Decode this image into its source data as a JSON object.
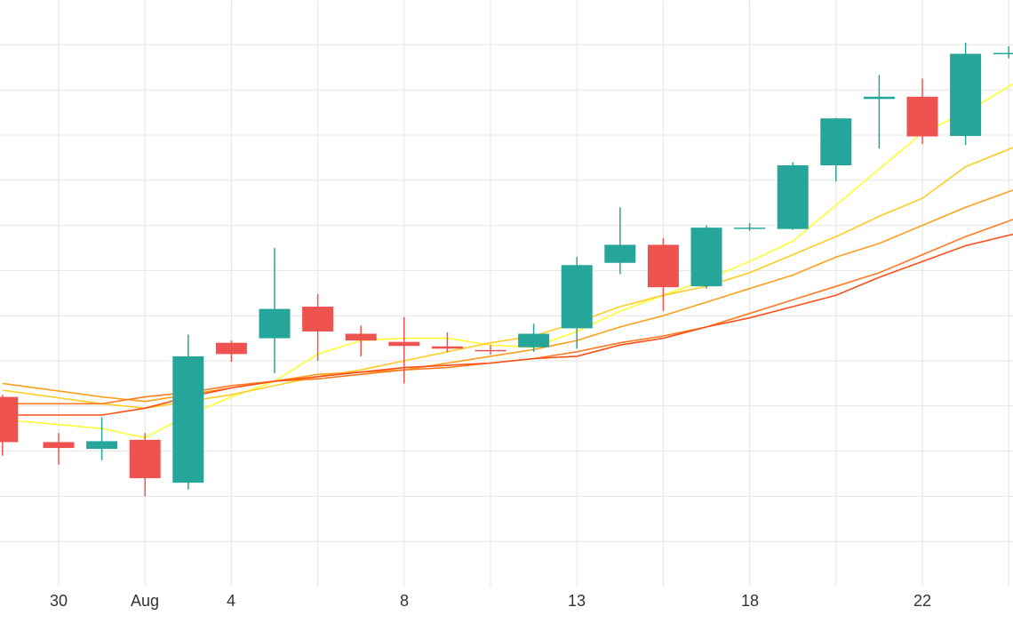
{
  "chart_data": {
    "type": "candlestick",
    "x_tick_labels": [
      "30",
      "Aug",
      "4",
      "8",
      "13",
      "18",
      "22"
    ],
    "grid": true,
    "ylim": [
      0,
      13.2
    ],
    "colors": {
      "up": "#26a69a",
      "down": "#ef5350",
      "ma": [
        "#ffff33",
        "#ffcc22",
        "#ff9f1e",
        "#ff7b22",
        "#ff4f18"
      ]
    },
    "candles": [
      {
        "t": -1.3,
        "open": 4.2,
        "high": 4.25,
        "low": 2.9,
        "close": 3.2
      },
      {
        "t": 0,
        "open": 3.2,
        "high": 3.4,
        "low": 2.7,
        "close": 3.07
      },
      {
        "t": 1,
        "open": 3.05,
        "high": 3.75,
        "low": 2.8,
        "close": 3.22
      },
      {
        "t": 2,
        "open": 3.25,
        "high": 3.4,
        "low": 2.0,
        "close": 2.4
      },
      {
        "t": 3,
        "open": 2.3,
        "high": 5.58,
        "low": 2.15,
        "close": 5.1
      },
      {
        "t": 4,
        "open": 5.4,
        "high": 5.45,
        "low": 4.98,
        "close": 5.15
      },
      {
        "t": 5,
        "open": 5.5,
        "high": 7.5,
        "low": 4.73,
        "close": 6.15
      },
      {
        "t": 6,
        "open": 6.2,
        "high": 6.48,
        "low": 5.0,
        "close": 5.65
      },
      {
        "t": 7,
        "open": 5.6,
        "high": 5.78,
        "low": 5.1,
        "close": 5.45
      },
      {
        "t": 8,
        "open": 5.42,
        "high": 5.97,
        "low": 4.5,
        "close": 5.33
      },
      {
        "t": 9,
        "open": 5.32,
        "high": 5.63,
        "low": 5.2,
        "close": 5.27
      },
      {
        "t": 10,
        "open": 5.24,
        "high": 5.35,
        "low": 5.14,
        "close": 5.21
      },
      {
        "t": 11,
        "open": 5.3,
        "high": 5.82,
        "low": 5.2,
        "close": 5.6
      },
      {
        "t": 12,
        "open": 5.72,
        "high": 7.3,
        "low": 5.27,
        "close": 7.12
      },
      {
        "t": 13,
        "open": 7.17,
        "high": 8.4,
        "low": 6.92,
        "close": 7.57
      },
      {
        "t": 14,
        "open": 7.57,
        "high": 7.72,
        "low": 6.1,
        "close": 6.63
      },
      {
        "t": 15,
        "open": 6.65,
        "high": 8.0,
        "low": 6.6,
        "close": 7.95
      },
      {
        "t": 16,
        "open": 7.95,
        "high": 8.05,
        "low": 7.88,
        "close": 7.95
      },
      {
        "t": 17,
        "open": 7.92,
        "high": 9.4,
        "low": 7.9,
        "close": 9.33
      },
      {
        "t": 18,
        "open": 9.33,
        "high": 10.38,
        "low": 8.97,
        "close": 10.37
      },
      {
        "t": 19,
        "open": 10.8,
        "high": 11.33,
        "low": 9.7,
        "close": 10.85
      },
      {
        "t": 20,
        "open": 10.85,
        "high": 11.25,
        "low": 9.8,
        "close": 9.97
      },
      {
        "t": 21,
        "open": 9.98,
        "high": 12.05,
        "low": 9.78,
        "close": 11.8
      },
      {
        "t": 22,
        "open": 11.8,
        "high": 11.97,
        "low": 11.7,
        "close": 11.82
      }
    ],
    "moving_averages": [
      {
        "x": [
          -1.3,
          1,
          2,
          3,
          4,
          5,
          6,
          7,
          8,
          9,
          10,
          11,
          12,
          13,
          14,
          15,
          16,
          17,
          18,
          19,
          20,
          21,
          22.3
        ],
        "y": [
          3.7,
          3.5,
          3.3,
          3.8,
          4.2,
          4.55,
          5.15,
          5.45,
          5.5,
          5.5,
          5.35,
          5.3,
          5.65,
          6.1,
          6.45,
          6.8,
          7.2,
          7.65,
          8.45,
          9.25,
          10.05,
          10.5,
          11.25
        ]
      },
      {
        "x": [
          -1.3,
          1,
          2,
          3,
          4,
          5,
          6,
          7,
          8,
          9,
          10,
          11,
          12,
          13,
          14,
          15,
          16,
          17,
          18,
          19,
          20,
          21,
          22.3
        ],
        "y": [
          4.35,
          4.05,
          3.95,
          4.1,
          4.25,
          4.45,
          4.65,
          4.8,
          5.0,
          5.2,
          5.4,
          5.55,
          5.85,
          6.2,
          6.45,
          6.65,
          6.95,
          7.35,
          7.75,
          8.2,
          8.6,
          9.3,
          9.8
        ]
      },
      {
        "x": [
          -1.3,
          1,
          2,
          3,
          4,
          5,
          6,
          7,
          8,
          9,
          10,
          11,
          12,
          13,
          14,
          15,
          16,
          17,
          18,
          19,
          20,
          21,
          22.3
        ],
        "y": [
          4.5,
          4.2,
          4.1,
          4.25,
          4.4,
          4.55,
          4.7,
          4.75,
          4.8,
          4.95,
          5.1,
          5.25,
          5.45,
          5.75,
          6.0,
          6.3,
          6.6,
          6.9,
          7.3,
          7.6,
          8.0,
          8.4,
          8.85
        ]
      },
      {
        "x": [
          -1.3,
          1,
          2,
          3,
          4,
          5,
          6,
          7,
          8,
          9,
          10,
          11,
          12,
          13,
          14,
          15,
          16,
          17,
          18,
          19,
          20,
          21,
          22.3
        ],
        "y": [
          4.05,
          4.05,
          4.2,
          4.3,
          4.45,
          4.55,
          4.6,
          4.7,
          4.8,
          4.85,
          4.95,
          5.05,
          5.2,
          5.4,
          5.55,
          5.75,
          6.05,
          6.35,
          6.65,
          6.95,
          7.35,
          7.75,
          8.2
        ]
      },
      {
        "x": [
          -1.3,
          1,
          2,
          3,
          4,
          5,
          6,
          7,
          8,
          9,
          10,
          11,
          12,
          13,
          14,
          15,
          16,
          17,
          18,
          19,
          20,
          21,
          22.3
        ],
        "y": [
          3.8,
          3.8,
          3.95,
          4.2,
          4.4,
          4.55,
          4.65,
          4.75,
          4.85,
          4.9,
          4.95,
          5.05,
          5.1,
          5.35,
          5.5,
          5.75,
          5.95,
          6.2,
          6.45,
          6.85,
          7.2,
          7.55,
          7.85
        ]
      }
    ]
  }
}
